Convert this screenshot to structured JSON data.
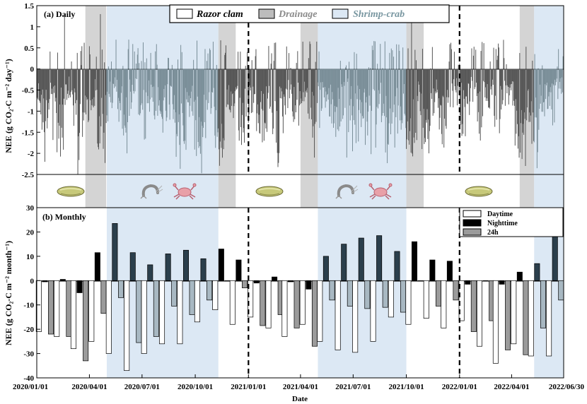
{
  "colors": {
    "daily_bar_clam": "#565656",
    "daily_bar_shrimp": "#7a8e98",
    "drainage_fill": "#d4d4d4",
    "shrimp_fill": "#dce8f4",
    "legend_clam_text": "#000000",
    "legend_drainage_text": "#8a8a8a",
    "legend_shrimp_text": "#7896a0",
    "day_fill": "#ffffff",
    "night_fill_clam": "#000000",
    "night_fill_shrimp": "#2b3f4c",
    "h24_fill_clam": "#9b9b9b",
    "h24_fill_shrimp": "#a8b8c2"
  },
  "chart_data": [
    {
      "type": "bar",
      "panel_label": "(a) Daily",
      "ylabel": "NEE (g CO₂-C m⁻² day⁻¹)",
      "ylim": [
        -2.5,
        1.5
      ],
      "yticks": [
        "1.5",
        "1",
        "0.5",
        "0",
        "-0.5",
        "-1",
        "-1.5",
        "-2",
        "-2.5"
      ],
      "legend": [
        "Razor clam",
        "Drainage",
        "Shrimp-crab"
      ],
      "legend_placement": "top-center",
      "periods": [
        {
          "type": "Drainage",
          "start": "2020-03-25",
          "end": "2020-04-30"
        },
        {
          "type": "Shrimp-crab",
          "start": "2020-05-01",
          "end": "2020-11-10"
        },
        {
          "type": "Drainage",
          "start": "2020-11-10",
          "end": "2020-12-10"
        },
        {
          "type": "Drainage",
          "start": "2021-04-01",
          "end": "2021-05-01"
        },
        {
          "type": "Shrimp-crab",
          "start": "2021-05-01",
          "end": "2021-10-01"
        },
        {
          "type": "Drainage",
          "start": "2021-10-01",
          "end": "2021-10-31"
        },
        {
          "type": "Drainage",
          "start": "2022-04-15",
          "end": "2022-05-10"
        },
        {
          "type": "Shrimp-crab",
          "start": "2022-05-10",
          "end": "2022-06-30"
        }
      ],
      "year_markers": [
        "2021-01-01",
        "2022-01-01"
      ],
      "daily_nee_5day_means": [
        -0.6,
        -1.0,
        -0.9,
        -0.7,
        -1.1,
        -1.4,
        -1.2,
        -0.8,
        -0.5,
        -0.9,
        -1.6,
        -1.3,
        -1.0,
        -0.8,
        -0.6,
        -1.2,
        -1.5,
        -0.9,
        -0.7,
        -0.4,
        -0.8,
        -1.0,
        -1.3,
        -0.6,
        -0.5,
        -0.9,
        -1.1,
        -0.7,
        -0.5,
        -0.8,
        -1.2,
        -1.0,
        -0.9,
        -1.1,
        -1.4,
        -1.7,
        -1.2,
        -1.0,
        -0.8,
        -1.3,
        -1.6,
        -1.1,
        -0.9,
        -0.7,
        -1.2,
        -1.5,
        -1.3,
        -1.0,
        -0.8,
        -1.1,
        -1.4,
        -1.2,
        -0.9,
        -0.7,
        -1.0,
        -1.3,
        -1.1,
        -0.8,
        -1.2,
        -1.5,
        -1.0,
        -0.8,
        -0.6,
        -1.0,
        -0.9,
        -0.7,
        -0.5,
        -0.8,
        -1.1,
        -0.9,
        -0.7,
        -0.6,
        -0.9,
        -1.2,
        -1.0,
        -0.8,
        -0.6,
        -1.0,
        -1.3,
        -1.1,
        -0.9,
        -1.2,
        -1.6,
        -1.3,
        -1.0,
        -0.8,
        -1.4,
        -1.7,
        -1.2,
        -1.0,
        -0.9,
        -1.3,
        -1.5,
        -1.1,
        -0.8,
        -1.2,
        -1.4,
        -1.0,
        -0.7,
        -1.1,
        -1.3,
        -0.9,
        -0.7,
        -0.6,
        -0.9,
        -1.0,
        -0.7,
        -0.5,
        -0.8,
        -1.1,
        -0.8,
        -0.6,
        -0.5,
        -0.9,
        -1.0,
        -0.7,
        -0.6,
        -0.8,
        -1.2,
        -1.4,
        -1.1,
        -0.9,
        -1.2,
        -1.5,
        -1.0,
        -0.8,
        -0.6,
        -0.9,
        -0.5,
        -0.4,
        -0.6,
        -0.8
      ],
      "peaks": [
        {
          "date": "2020-01-15",
          "value": -2.2
        },
        {
          "date": "2020-02-18",
          "value": 1.3
        },
        {
          "date": "2020-04-20",
          "value": 1.3
        },
        {
          "date": "2020-06-05",
          "value": -2.0
        },
        {
          "date": "2020-12-20",
          "value": -1.8
        },
        {
          "date": "2021-04-25",
          "value": -2.1
        },
        {
          "date": "2021-06-20",
          "value": -2.1
        },
        {
          "date": "2021-10-10",
          "value": 1.1
        },
        {
          "date": "2022-04-25",
          "value": -2.3
        }
      ]
    },
    {
      "type": "bar",
      "panel_label": "(b) Monthly",
      "ylabel": "NEE (g CO₂-C m⁻² month⁻¹)",
      "xlabel": "Date",
      "ylim": [
        -40,
        30
      ],
      "yticks": [
        "30",
        "20",
        "10",
        "0",
        "-10",
        "-20",
        "-30",
        "-40"
      ],
      "xticks": [
        "2020/01/01",
        "2020/04/01",
        "2020/07/01",
        "2020/10/01",
        "2021/01/01",
        "2021/04/01",
        "2021/07/01",
        "2021/10/01",
        "2022/01/01",
        "2022/04/01",
        "2022/06/30"
      ],
      "legend": [
        "Daytime",
        "Nighttime",
        "24h"
      ],
      "legend_placement": "top-right",
      "categories": [
        "2020-01",
        "2020-02",
        "2020-03",
        "2020-04",
        "2020-05",
        "2020-06",
        "2020-07",
        "2020-08",
        "2020-09",
        "2020-10",
        "2020-11",
        "2020-12",
        "2021-01",
        "2021-02",
        "2021-03",
        "2021-04",
        "2021-05",
        "2021-06",
        "2021-07",
        "2021-08",
        "2021-09",
        "2021-10",
        "2021-11",
        "2021-12",
        "2022-01",
        "2022-02",
        "2022-03",
        "2022-04",
        "2022-05",
        "2022-06"
      ],
      "series": [
        {
          "name": "Daytime",
          "values": [
            -21,
            -23,
            -28,
            -25,
            -30,
            -37,
            -30,
            -26,
            -26,
            -17,
            -12,
            -18,
            -15,
            -19.5,
            -23,
            -18,
            -25,
            -28.5,
            -29.5,
            -25,
            -15,
            -18,
            -15.5,
            -19.5,
            -16.5,
            -27,
            -34,
            -26,
            -31,
            -31
          ]
        },
        {
          "name": "Nighttime",
          "values": [
            -0.5,
            0.5,
            -5,
            11.5,
            23.5,
            11.5,
            6.5,
            11,
            12.5,
            9,
            13,
            8.5,
            -1,
            1.5,
            -0.5,
            -3.5,
            10,
            15,
            17.5,
            18.5,
            12,
            16,
            8.5,
            8,
            -1.5,
            0,
            -1.5,
            3.5,
            7,
            23.5
          ]
        },
        {
          "name": "24h",
          "values": [
            -22,
            -23,
            -33,
            -13.5,
            -7,
            -25.5,
            -23,
            -10.5,
            -14,
            -8,
            0,
            -3,
            -18.5,
            -14,
            -19.5,
            -27,
            -8,
            -10.5,
            -11.5,
            -11,
            -13,
            0,
            -10.5,
            -8,
            -21,
            -16.5,
            -28.5,
            -30.5,
            -19.5,
            -8
          ]
        }
      ]
    }
  ]
}
